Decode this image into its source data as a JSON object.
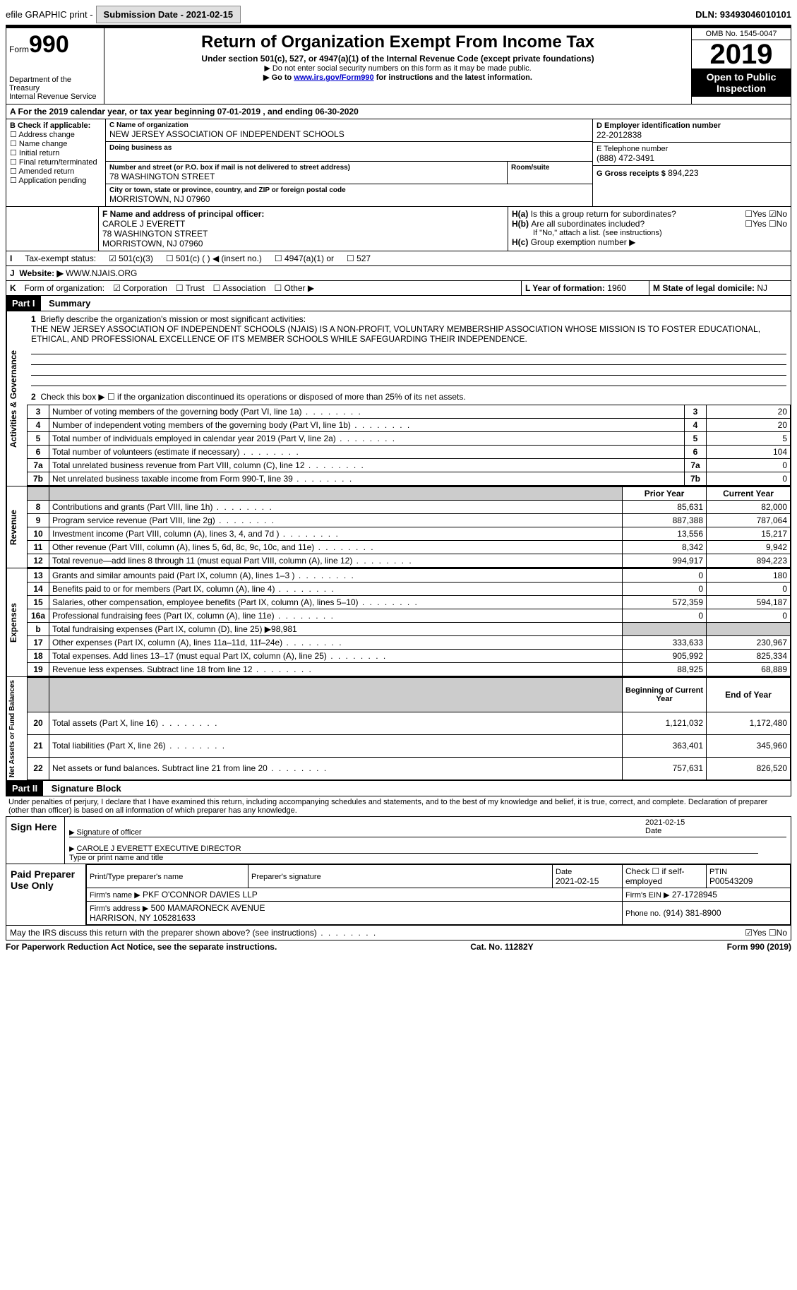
{
  "topbar": {
    "efile": "efile GRAPHIC print -",
    "submission": "Submission Date - 2021-02-15",
    "dln": "DLN: 93493046010101"
  },
  "header": {
    "form": "Form",
    "formno": "990",
    "title": "Return of Organization Exempt From Income Tax",
    "sub1": "Under section 501(c), 527, or 4947(a)(1) of the Internal Revenue Code (except private foundations)",
    "sub2": "▶ Do not enter social security numbers on this form as it may be made public.",
    "sub3_a": "▶ Go to ",
    "sub3_link": "www.irs.gov/Form990",
    "sub3_b": " for instructions and the latest information.",
    "dept": "Department of the Treasury\nInternal Revenue Service",
    "omb": "OMB No. 1545-0047",
    "year": "2019",
    "open": "Open to Public Inspection"
  },
  "A": {
    "text": "A For the 2019 calendar year, or tax year beginning 07-01-2019    , and ending 06-30-2020"
  },
  "B": {
    "title": "B Check if applicable:",
    "items": [
      "Address change",
      "Name change",
      "Initial return",
      "Final return/terminated",
      "Amended return",
      "Application pending"
    ]
  },
  "C": {
    "label": "C Name of organization",
    "name": "NEW JERSEY ASSOCIATION OF INDEPENDENT SCHOOLS",
    "dba_label": "Doing business as",
    "street_label": "Number and street (or P.O. box if mail is not delivered to street address)",
    "room_label": "Room/suite",
    "street": "78 WASHINGTON STREET",
    "city_label": "City or town, state or province, country, and ZIP or foreign postal code",
    "city": "MORRISTOWN, NJ  07960"
  },
  "D": {
    "label": "D Employer identification number",
    "val": "22-2012838"
  },
  "E": {
    "label": "E Telephone number",
    "val": "(888) 472-3491"
  },
  "G": {
    "label": "G Gross receipts $",
    "val": "894,223"
  },
  "F": {
    "label": "F Name and address of principal officer:",
    "name": "CAROLE J EVERETT",
    "addr1": "78 WASHINGTON STREET",
    "addr2": "MORRISTOWN, NJ  07960"
  },
  "H": {
    "a": "Is this a group return for subordinates?",
    "b": "Are all subordinates included?",
    "note": "If \"No,\" attach a list. (see instructions)",
    "c": "Group exemption number ▶"
  },
  "I": {
    "label": "Tax-exempt status:",
    "opts": [
      "501(c)(3)",
      "501(c) (  ) ◀ (insert no.)",
      "4947(a)(1) or",
      "527"
    ]
  },
  "J": {
    "label": "Website: ▶",
    "val": "WWW.NJAIS.ORG"
  },
  "K": {
    "label": "Form of organization:",
    "opts": [
      "Corporation",
      "Trust",
      "Association",
      "Other ▶"
    ]
  },
  "L": {
    "label": "L Year of formation:",
    "val": "1960"
  },
  "M": {
    "label": "M State of legal domicile:",
    "val": "NJ"
  },
  "part1": {
    "hdr": "Part I",
    "title": "Summary",
    "q1": "Briefly describe the organization's mission or most significant activities:",
    "mission": "THE NEW JERSEY ASSOCIATION OF INDEPENDENT SCHOOLS (NJAIS) IS A NON-PROFIT, VOLUNTARY MEMBERSHIP ASSOCIATION WHOSE MISSION IS TO FOSTER EDUCATIONAL, ETHICAL, AND PROFESSIONAL EXCELLENCE OF ITS MEMBER SCHOOLS WHILE SAFEGUARDING THEIR INDEPENDENCE.",
    "q2": "Check this box ▶ ☐ if the organization discontinued its operations or disposed of more than 25% of its net assets.",
    "lines_gov": [
      {
        "n": "3",
        "t": "Number of voting members of the governing body (Part VI, line 1a)",
        "v": "20"
      },
      {
        "n": "4",
        "t": "Number of independent voting members of the governing body (Part VI, line 1b)",
        "v": "20"
      },
      {
        "n": "5",
        "t": "Total number of individuals employed in calendar year 2019 (Part V, line 2a)",
        "v": "5"
      },
      {
        "n": "6",
        "t": "Total number of volunteers (estimate if necessary)",
        "v": "104"
      },
      {
        "n": "7a",
        "t": "Total unrelated business revenue from Part VIII, column (C), line 12",
        "v": "0"
      },
      {
        "n": "7b",
        "t": "Net unrelated business taxable income from Form 990-T, line 39",
        "v": "0"
      }
    ],
    "col_prior": "Prior Year",
    "col_curr": "Current Year",
    "rev": [
      {
        "n": "8",
        "t": "Contributions and grants (Part VIII, line 1h)",
        "p": "85,631",
        "c": "82,000"
      },
      {
        "n": "9",
        "t": "Program service revenue (Part VIII, line 2g)",
        "p": "887,388",
        "c": "787,064"
      },
      {
        "n": "10",
        "t": "Investment income (Part VIII, column (A), lines 3, 4, and 7d )",
        "p": "13,556",
        "c": "15,217"
      },
      {
        "n": "11",
        "t": "Other revenue (Part VIII, column (A), lines 5, 6d, 8c, 9c, 10c, and 11e)",
        "p": "8,342",
        "c": "9,942"
      },
      {
        "n": "12",
        "t": "Total revenue—add lines 8 through 11 (must equal Part VIII, column (A), line 12)",
        "p": "994,917",
        "c": "894,223"
      }
    ],
    "exp": [
      {
        "n": "13",
        "t": "Grants and similar amounts paid (Part IX, column (A), lines 1–3 )",
        "p": "0",
        "c": "180"
      },
      {
        "n": "14",
        "t": "Benefits paid to or for members (Part IX, column (A), line 4)",
        "p": "0",
        "c": "0"
      },
      {
        "n": "15",
        "t": "Salaries, other compensation, employee benefits (Part IX, column (A), lines 5–10)",
        "p": "572,359",
        "c": "594,187"
      },
      {
        "n": "16a",
        "t": "Professional fundraising fees (Part IX, column (A), line 11e)",
        "p": "0",
        "c": "0"
      },
      {
        "n": "b",
        "t": "Total fundraising expenses (Part IX, column (D), line 25) ▶98,981",
        "p": "",
        "c": "",
        "grey": true
      },
      {
        "n": "17",
        "t": "Other expenses (Part IX, column (A), lines 11a–11d, 11f–24e)",
        "p": "333,633",
        "c": "230,967"
      },
      {
        "n": "18",
        "t": "Total expenses. Add lines 13–17 (must equal Part IX, column (A), line 25)",
        "p": "905,992",
        "c": "825,334"
      },
      {
        "n": "19",
        "t": "Revenue less expenses. Subtract line 18 from line 12",
        "p": "88,925",
        "c": "68,889"
      }
    ],
    "col_beg": "Beginning of Current Year",
    "col_end": "End of Year",
    "net": [
      {
        "n": "20",
        "t": "Total assets (Part X, line 16)",
        "p": "1,121,032",
        "c": "1,172,480"
      },
      {
        "n": "21",
        "t": "Total liabilities (Part X, line 26)",
        "p": "363,401",
        "c": "345,960"
      },
      {
        "n": "22",
        "t": "Net assets or fund balances. Subtract line 21 from line 20",
        "p": "757,631",
        "c": "826,520"
      }
    ],
    "vtext_gov": "Activities & Governance",
    "vtext_rev": "Revenue",
    "vtext_exp": "Expenses",
    "vtext_net": "Net Assets or Fund Balances"
  },
  "part2": {
    "hdr": "Part II",
    "title": "Signature Block",
    "decl": "Under penalties of perjury, I declare that I have examined this return, including accompanying schedules and statements, and to the best of my knowledge and belief, it is true, correct, and complete. Declaration of preparer (other than officer) is based on all information of which preparer has any knowledge.",
    "sign_here": "Sign Here",
    "sig_officer": "Signature of officer",
    "date": "Date",
    "date_val": "2021-02-15",
    "officer": "CAROLE J EVERETT  EXECUTIVE DIRECTOR",
    "type_name": "Type or print name and title",
    "paid": "Paid Preparer Use Only",
    "prep_name_label": "Print/Type preparer's name",
    "prep_sig_label": "Preparer's signature",
    "prep_date": "Date",
    "prep_date_val": "2021-02-15",
    "check_self": "Check ☐ if self-employed",
    "ptin_label": "PTIN",
    "ptin": "P00543209",
    "firm_name_label": "Firm's name    ▶",
    "firm_name": "PKF O'CONNOR DAVIES LLP",
    "firm_ein_label": "Firm's EIN ▶",
    "firm_ein": "27-1728945",
    "firm_addr_label": "Firm's address ▶",
    "firm_addr": "500 MAMARONECK AVENUE\nHARRISON, NY  105281633",
    "phone_label": "Phone no.",
    "phone": "(914) 381-8900",
    "discuss": "May the IRS discuss this return with the preparer shown above? (see instructions)",
    "yes": "Yes",
    "no": "No"
  },
  "footer": {
    "left": "For Paperwork Reduction Act Notice, see the separate instructions.",
    "mid": "Cat. No. 11282Y",
    "right": "Form 990 (2019)"
  }
}
